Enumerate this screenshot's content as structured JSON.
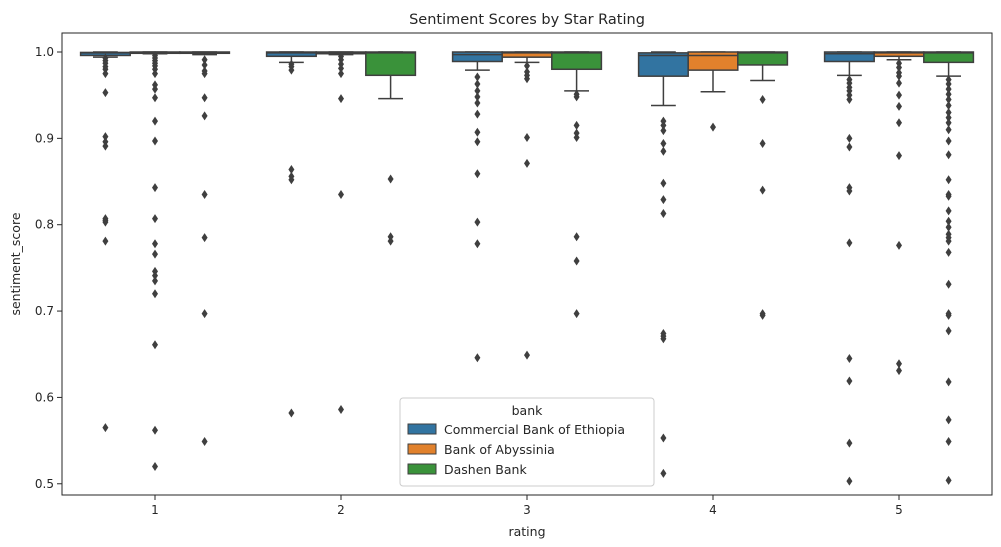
{
  "chart_data": {
    "type": "box",
    "title": "Sentiment Scores by Star Rating",
    "xlabel": "rating",
    "ylabel": "sentiment_score",
    "categories": [
      "1",
      "2",
      "3",
      "4",
      "5"
    ],
    "yticks": [
      "0.5",
      "0.6",
      "0.7",
      "0.8",
      "0.9",
      "1.0"
    ],
    "ylim": [
      0.487,
      1.022
    ],
    "grid": false,
    "legend": {
      "title": "bank",
      "position": "lower-center",
      "entries": [
        "Commercial Bank of Ethiopia",
        "Bank of Abyssinia",
        "Dashen Bank"
      ]
    },
    "series": [
      {
        "name": "Commercial Bank of Ethiopia",
        "color": "#3274a1",
        "boxes": [
          {
            "q1": 0.996,
            "median": 0.999,
            "q3": 0.9995,
            "whislo": 0.994,
            "whishi": 1.0,
            "fliers": [
              0.993,
              0.99,
              0.987,
              0.983,
              0.98,
              0.975,
              0.953,
              0.902,
              0.896,
              0.891,
              0.807,
              0.805,
              0.803,
              0.781,
              0.565
            ]
          },
          {
            "q1": 0.995,
            "median": 0.999,
            "q3": 1.0,
            "whislo": 0.988,
            "whishi": 1.0,
            "fliers": [
              0.986,
              0.983,
              0.979,
              0.864,
              0.856,
              0.852,
              0.582
            ]
          },
          {
            "q1": 0.989,
            "median": 0.997,
            "q3": 1.0,
            "whislo": 0.979,
            "whishi": 1.0,
            "fliers": [
              0.971,
              0.963,
              0.955,
              0.948,
              0.941,
              0.928,
              0.907,
              0.896,
              0.859,
              0.803,
              0.778,
              0.646
            ]
          },
          {
            "q1": 0.972,
            "median": 0.996,
            "q3": 0.999,
            "whislo": 0.938,
            "whishi": 1.0,
            "fliers": [
              0.92,
              0.915,
              0.909,
              0.894,
              0.885,
              0.848,
              0.829,
              0.813,
              0.674,
              0.671,
              0.668,
              0.553,
              0.512
            ]
          },
          {
            "q1": 0.989,
            "median": 0.998,
            "q3": 1.0,
            "whislo": 0.973,
            "whishi": 1.0,
            "fliers": [
              0.968,
              0.964,
              0.959,
              0.955,
              0.95,
              0.945,
              0.9,
              0.89,
              0.843,
              0.839,
              0.779,
              0.645,
              0.619,
              0.547,
              0.503
            ]
          }
        ]
      },
      {
        "name": "Bank of Abyssinia",
        "color": "#e1812c",
        "boxes": [
          {
            "q1": 0.9985,
            "median": 0.9995,
            "q3": 1.0,
            "whislo": 0.998,
            "whishi": 1.0,
            "fliers": [
              0.996,
              0.993,
              0.99,
              0.987,
              0.984,
              0.98,
              0.975,
              0.962,
              0.957,
              0.947,
              0.92,
              0.897,
              0.843,
              0.807,
              0.778,
              0.766,
              0.746,
              0.741,
              0.735,
              0.72,
              0.661,
              0.562,
              0.52
            ]
          },
          {
            "q1": 0.998,
            "median": 0.9995,
            "q3": 1.0,
            "whislo": 0.997,
            "whishi": 1.0,
            "fliers": [
              0.995,
              0.991,
              0.986,
              0.981,
              0.975,
              0.946,
              0.835,
              0.586
            ]
          },
          {
            "q1": 0.994,
            "median": 0.999,
            "q3": 1.0,
            "whislo": 0.988,
            "whishi": 1.0,
            "fliers": [
              0.984,
              0.977,
              0.973,
              0.969,
              0.901,
              0.871,
              0.649
            ]
          },
          {
            "q1": 0.979,
            "median": 0.996,
            "q3": 1.0,
            "whislo": 0.954,
            "whishi": 1.0,
            "fliers": [
              0.913
            ]
          },
          {
            "q1": 0.995,
            "median": 0.999,
            "q3": 1.0,
            "whislo": 0.991,
            "whishi": 1.0,
            "fliers": [
              0.987,
              0.982,
              0.976,
              0.972,
              0.964,
              0.95,
              0.937,
              0.918,
              0.88,
              0.776,
              0.639,
              0.631
            ]
          }
        ]
      },
      {
        "name": "Dashen Bank",
        "color": "#3a923a",
        "boxes": [
          {
            "q1": 0.9985,
            "median": 0.9995,
            "q3": 1.0,
            "whislo": 0.997,
            "whishi": 1.0,
            "fliers": [
              0.991,
              0.985,
              0.978,
              0.975,
              0.947,
              0.926,
              0.835,
              0.785,
              0.697,
              0.549
            ]
          },
          {
            "q1": 0.973,
            "median": 0.999,
            "q3": 1.0,
            "whislo": 0.946,
            "whishi": 1.0,
            "fliers": [
              0.853,
              0.786,
              0.781
            ]
          },
          {
            "q1": 0.98,
            "median": 0.999,
            "q3": 1.0,
            "whislo": 0.955,
            "whishi": 1.0,
            "fliers": [
              0.951,
              0.948,
              0.915,
              0.906,
              0.901,
              0.786,
              0.758,
              0.697
            ]
          },
          {
            "q1": 0.985,
            "median": 0.999,
            "q3": 1.0,
            "whislo": 0.967,
            "whishi": 1.0,
            "fliers": [
              0.945,
              0.894,
              0.84,
              0.697,
              0.695
            ]
          },
          {
            "q1": 0.988,
            "median": 0.999,
            "q3": 1.0,
            "whislo": 0.972,
            "whishi": 1.0,
            "fliers": [
              0.968,
              0.963,
              0.957,
              0.951,
              0.945,
              0.938,
              0.93,
              0.924,
              0.918,
              0.91,
              0.897,
              0.881,
              0.852,
              0.835,
              0.833,
              0.816,
              0.804,
              0.797,
              0.789,
              0.785,
              0.781,
              0.768,
              0.731,
              0.697,
              0.695,
              0.677,
              0.618,
              0.574,
              0.549,
              0.504
            ]
          }
        ]
      }
    ]
  }
}
